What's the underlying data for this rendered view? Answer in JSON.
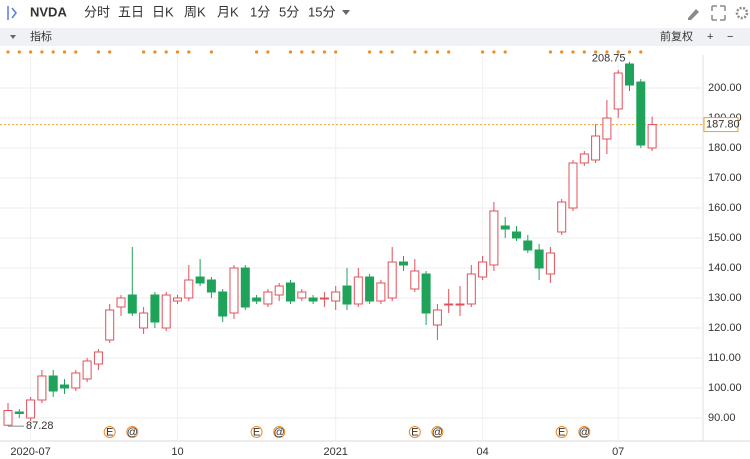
{
  "toolbar": {
    "symbol": "NVDA",
    "periods": [
      "分时",
      "五日",
      "日K",
      "周K",
      "月K",
      "1分",
      "5分",
      "15分"
    ],
    "active_period": 3,
    "indicator": "指标",
    "adjust": "前复权"
  },
  "chart_data": {
    "type": "candlestick",
    "categories": [
      null,
      null,
      "2020-07",
      null,
      null,
      null,
      null,
      null,
      null,
      null,
      null,
      null,
      null,
      null,
      null,
      "10",
      null,
      null,
      null,
      null,
      null,
      null,
      null,
      null,
      null,
      null,
      null,
      null,
      null,
      "2021",
      null,
      null,
      null,
      null,
      null,
      null,
      null,
      null,
      null,
      null,
      null,
      null,
      "04",
      null,
      null,
      null,
      null,
      null,
      null,
      null,
      null,
      null,
      null,
      null,
      "07",
      null,
      null,
      null
    ],
    "open": [
      87.6,
      92,
      90,
      96,
      104,
      101,
      100,
      103,
      108,
      116,
      127,
      131,
      120,
      131,
      120,
      129,
      130,
      137,
      136,
      132,
      125,
      140,
      130,
      128,
      131,
      135,
      130,
      130,
      130,
      129,
      134,
      128,
      137,
      129,
      130,
      142,
      133,
      138,
      121,
      128,
      128,
      128,
      137,
      141,
      154,
      152,
      149,
      146,
      138,
      152,
      160,
      175,
      176,
      183,
      193,
      208,
      202,
      180
    ],
    "close": [
      92.5,
      91.5,
      96,
      104,
      99,
      100,
      105,
      109,
      112,
      126,
      130,
      125,
      125,
      122,
      131,
      130,
      136,
      135,
      132,
      124,
      140,
      127,
      129,
      132,
      134,
      129,
      132,
      129,
      130,
      132,
      128,
      137,
      129,
      135,
      142,
      141,
      139,
      125,
      126,
      128,
      128,
      138,
      142,
      159,
      153,
      150,
      146,
      140,
      145,
      162,
      175,
      178,
      184,
      190,
      205,
      201,
      181,
      187.8
    ],
    "high": [
      95,
      93,
      97,
      106,
      106,
      103,
      106,
      110,
      113,
      128,
      131,
      147,
      127,
      132,
      132,
      131,
      141,
      143,
      137,
      133,
      141,
      141,
      131,
      133,
      135,
      136,
      133,
      131,
      132,
      134,
      140,
      140,
      138,
      136,
      147,
      144,
      143,
      139,
      128,
      133,
      134,
      141,
      144,
      162,
      157,
      154,
      151,
      148,
      147,
      163,
      176,
      179,
      188,
      196,
      206,
      208.75,
      203,
      190.5
    ],
    "low": [
      87.28,
      90,
      89,
      95,
      97,
      98,
      99,
      102,
      106,
      115,
      124,
      124,
      118,
      120,
      119,
      128,
      129,
      134,
      130,
      122,
      123,
      126,
      128,
      127,
      129,
      128,
      129,
      128,
      127,
      126,
      126,
      127,
      128,
      128,
      129,
      139,
      132,
      121,
      116,
      125,
      124,
      127,
      136,
      139,
      150,
      149,
      145,
      136,
      135,
      151,
      159,
      174,
      175,
      178,
      190,
      199,
      180,
      179
    ],
    "up_color": "#e0505a",
    "down_color": "#1fa35a",
    "ylim": [
      83,
      211
    ],
    "yticks": [
      {
        "value": 90,
        "label": "90.00"
      },
      {
        "value": 100,
        "label": "100.00"
      },
      {
        "value": 110,
        "label": "110.00"
      },
      {
        "value": 120,
        "label": "120.00"
      },
      {
        "value": 130,
        "label": "130.00"
      },
      {
        "value": 140,
        "label": "140.00"
      },
      {
        "value": 150,
        "label": "150.00"
      },
      {
        "value": 160,
        "label": "160.00"
      },
      {
        "value": 170,
        "label": "170.00"
      },
      {
        "value": 180,
        "label": "180.00"
      },
      {
        "value": 190,
        "label": "190.00"
      },
      {
        "value": 200,
        "label": "200.00"
      }
    ],
    "last_price": {
      "value": 187.8,
      "label": "187.80"
    },
    "max_label": 208.75,
    "min_label": 87.28,
    "events": [
      {
        "text": "E",
        "index": 9
      },
      {
        "text": "@",
        "index": 11
      },
      {
        "text": "E",
        "index": 22
      },
      {
        "text": "@",
        "index": 24
      },
      {
        "text": "E",
        "index": 36
      },
      {
        "text": "@",
        "index": 38
      },
      {
        "text": "E",
        "index": 49
      },
      {
        "text": "@",
        "index": 51
      }
    ]
  }
}
